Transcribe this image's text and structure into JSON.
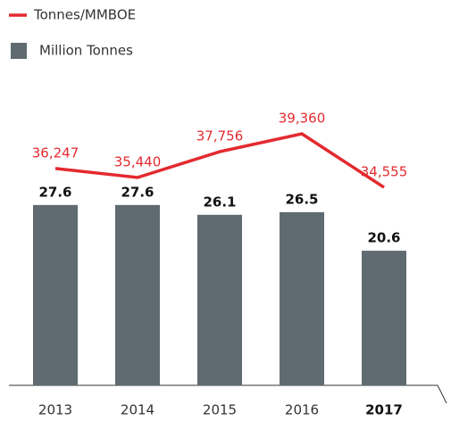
{
  "chart_data": {
    "type": "bar-line",
    "categories": [
      "2013",
      "2014",
      "2015",
      "2016",
      "2017"
    ],
    "series": [
      {
        "name": "Million Tonnes",
        "type": "bar",
        "color": "#5f6b70",
        "values": [
          27.6,
          27.6,
          26.1,
          26.5,
          20.6
        ]
      },
      {
        "name": "Tonnes/MMBOE",
        "type": "line",
        "axis": "y2",
        "color": "#e32a2f",
        "values": [
          36247,
          35440,
          37756,
          39360,
          34555
        ],
        "value_labels": [
          "36,247",
          "35,440",
          "37,756",
          "39,360",
          "34,555"
        ]
      }
    ],
    "ylim": [
      0,
      40
    ],
    "y2lim": [
      16800,
      40240
    ],
    "grid": false
  }
}
